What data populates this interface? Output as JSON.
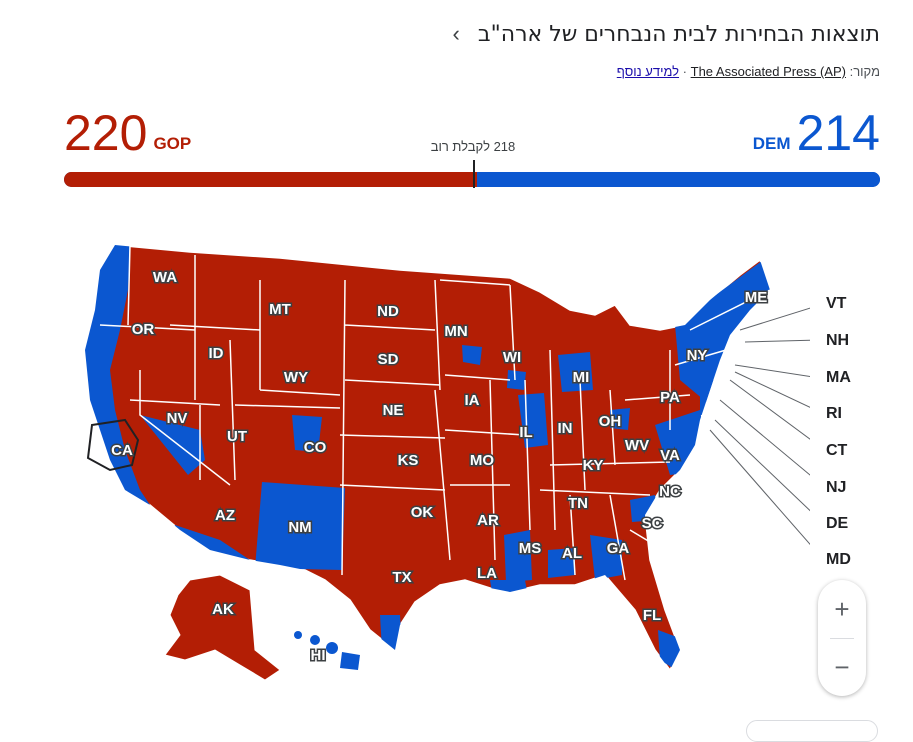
{
  "header": {
    "title": "תוצאות הבחירות לבית הנבחרים של ארה\"ב",
    "chevron": "›"
  },
  "source": {
    "label": "מקור:",
    "name": "The Associated Press (AP)",
    "separator": "·",
    "more_link": "למידע נוסף"
  },
  "tally": {
    "gop": {
      "count": "220",
      "label": "GOP",
      "seats": 220,
      "color": "#b31e05"
    },
    "dem": {
      "count": "214",
      "label": "DEM",
      "seats": 214,
      "color": "#0b57d0"
    },
    "majority_text": "218 לקבלת רוב",
    "majority_seats": 218,
    "total_seats": 435
  },
  "map": {
    "state_labels": [
      "WA",
      "OR",
      "CA",
      "NV",
      "ID",
      "MT",
      "WY",
      "UT",
      "AZ",
      "CO",
      "NM",
      "ND",
      "SD",
      "NE",
      "KS",
      "OK",
      "TX",
      "MN",
      "IA",
      "MO",
      "AR",
      "LA",
      "WI",
      "IL",
      "MS",
      "MI",
      "IN",
      "KY",
      "TN",
      "AL",
      "OH",
      "WV",
      "VA",
      "NC",
      "SC",
      "GA",
      "FL",
      "PA",
      "NY",
      "ME",
      "AK",
      "HI"
    ],
    "right_labels": [
      "VT",
      "NH",
      "MA",
      "RI",
      "CT",
      "NJ",
      "DE",
      "MD"
    ],
    "colors": {
      "rep": "#b31e05",
      "dem": "#0b57d0",
      "border": "#ffffff"
    }
  },
  "zoom": {
    "in": "+",
    "out": "−"
  }
}
